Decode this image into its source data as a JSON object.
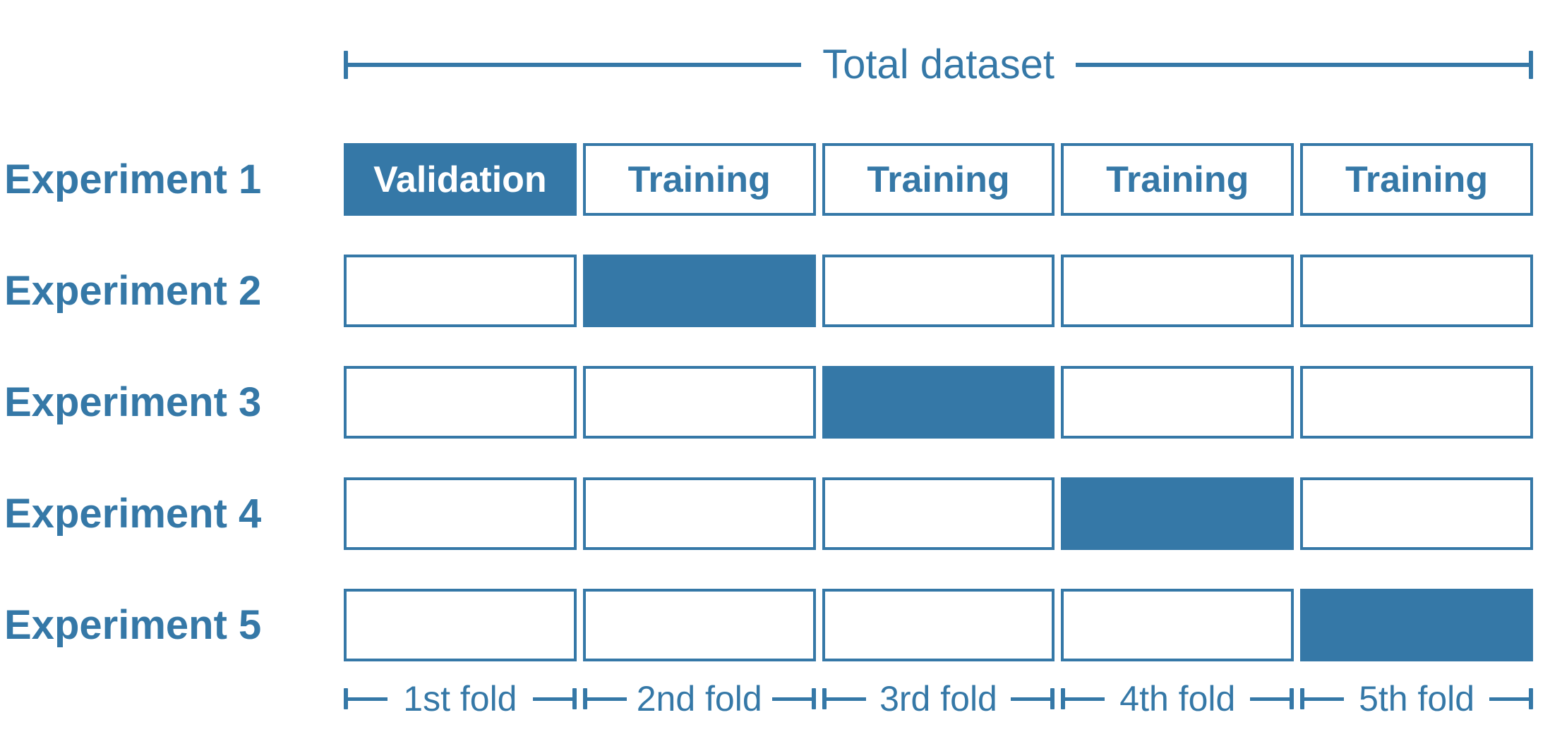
{
  "colors": {
    "accent": "#3578A7",
    "box_fill": "#3578A7",
    "text_on_fill": "#FFFFFF"
  },
  "total_dataset": {
    "label": "Total dataset"
  },
  "experiments": [
    {
      "label": "Experiment 1",
      "folds": [
        {
          "text": "Validation",
          "filled": true
        },
        {
          "text": "Training",
          "filled": false
        },
        {
          "text": "Training",
          "filled": false
        },
        {
          "text": "Training",
          "filled": false
        },
        {
          "text": "Training",
          "filled": false
        }
      ]
    },
    {
      "label": "Experiment 2",
      "folds": [
        {
          "text": "",
          "filled": false
        },
        {
          "text": "",
          "filled": true
        },
        {
          "text": "",
          "filled": false
        },
        {
          "text": "",
          "filled": false
        },
        {
          "text": "",
          "filled": false
        }
      ]
    },
    {
      "label": "Experiment 3",
      "folds": [
        {
          "text": "",
          "filled": false
        },
        {
          "text": "",
          "filled": false
        },
        {
          "text": "",
          "filled": true
        },
        {
          "text": "",
          "filled": false
        },
        {
          "text": "",
          "filled": false
        }
      ]
    },
    {
      "label": "Experiment 4",
      "folds": [
        {
          "text": "",
          "filled": false
        },
        {
          "text": "",
          "filled": false
        },
        {
          "text": "",
          "filled": false
        },
        {
          "text": "",
          "filled": true
        },
        {
          "text": "",
          "filled": false
        }
      ]
    },
    {
      "label": "Experiment 5",
      "folds": [
        {
          "text": "",
          "filled": false
        },
        {
          "text": "",
          "filled": false
        },
        {
          "text": "",
          "filled": false
        },
        {
          "text": "",
          "filled": false
        },
        {
          "text": "",
          "filled": true
        }
      ]
    }
  ],
  "fold_labels": [
    "1st fold",
    "2nd fold",
    "3rd fold",
    "4th fold",
    "5th fold"
  ]
}
